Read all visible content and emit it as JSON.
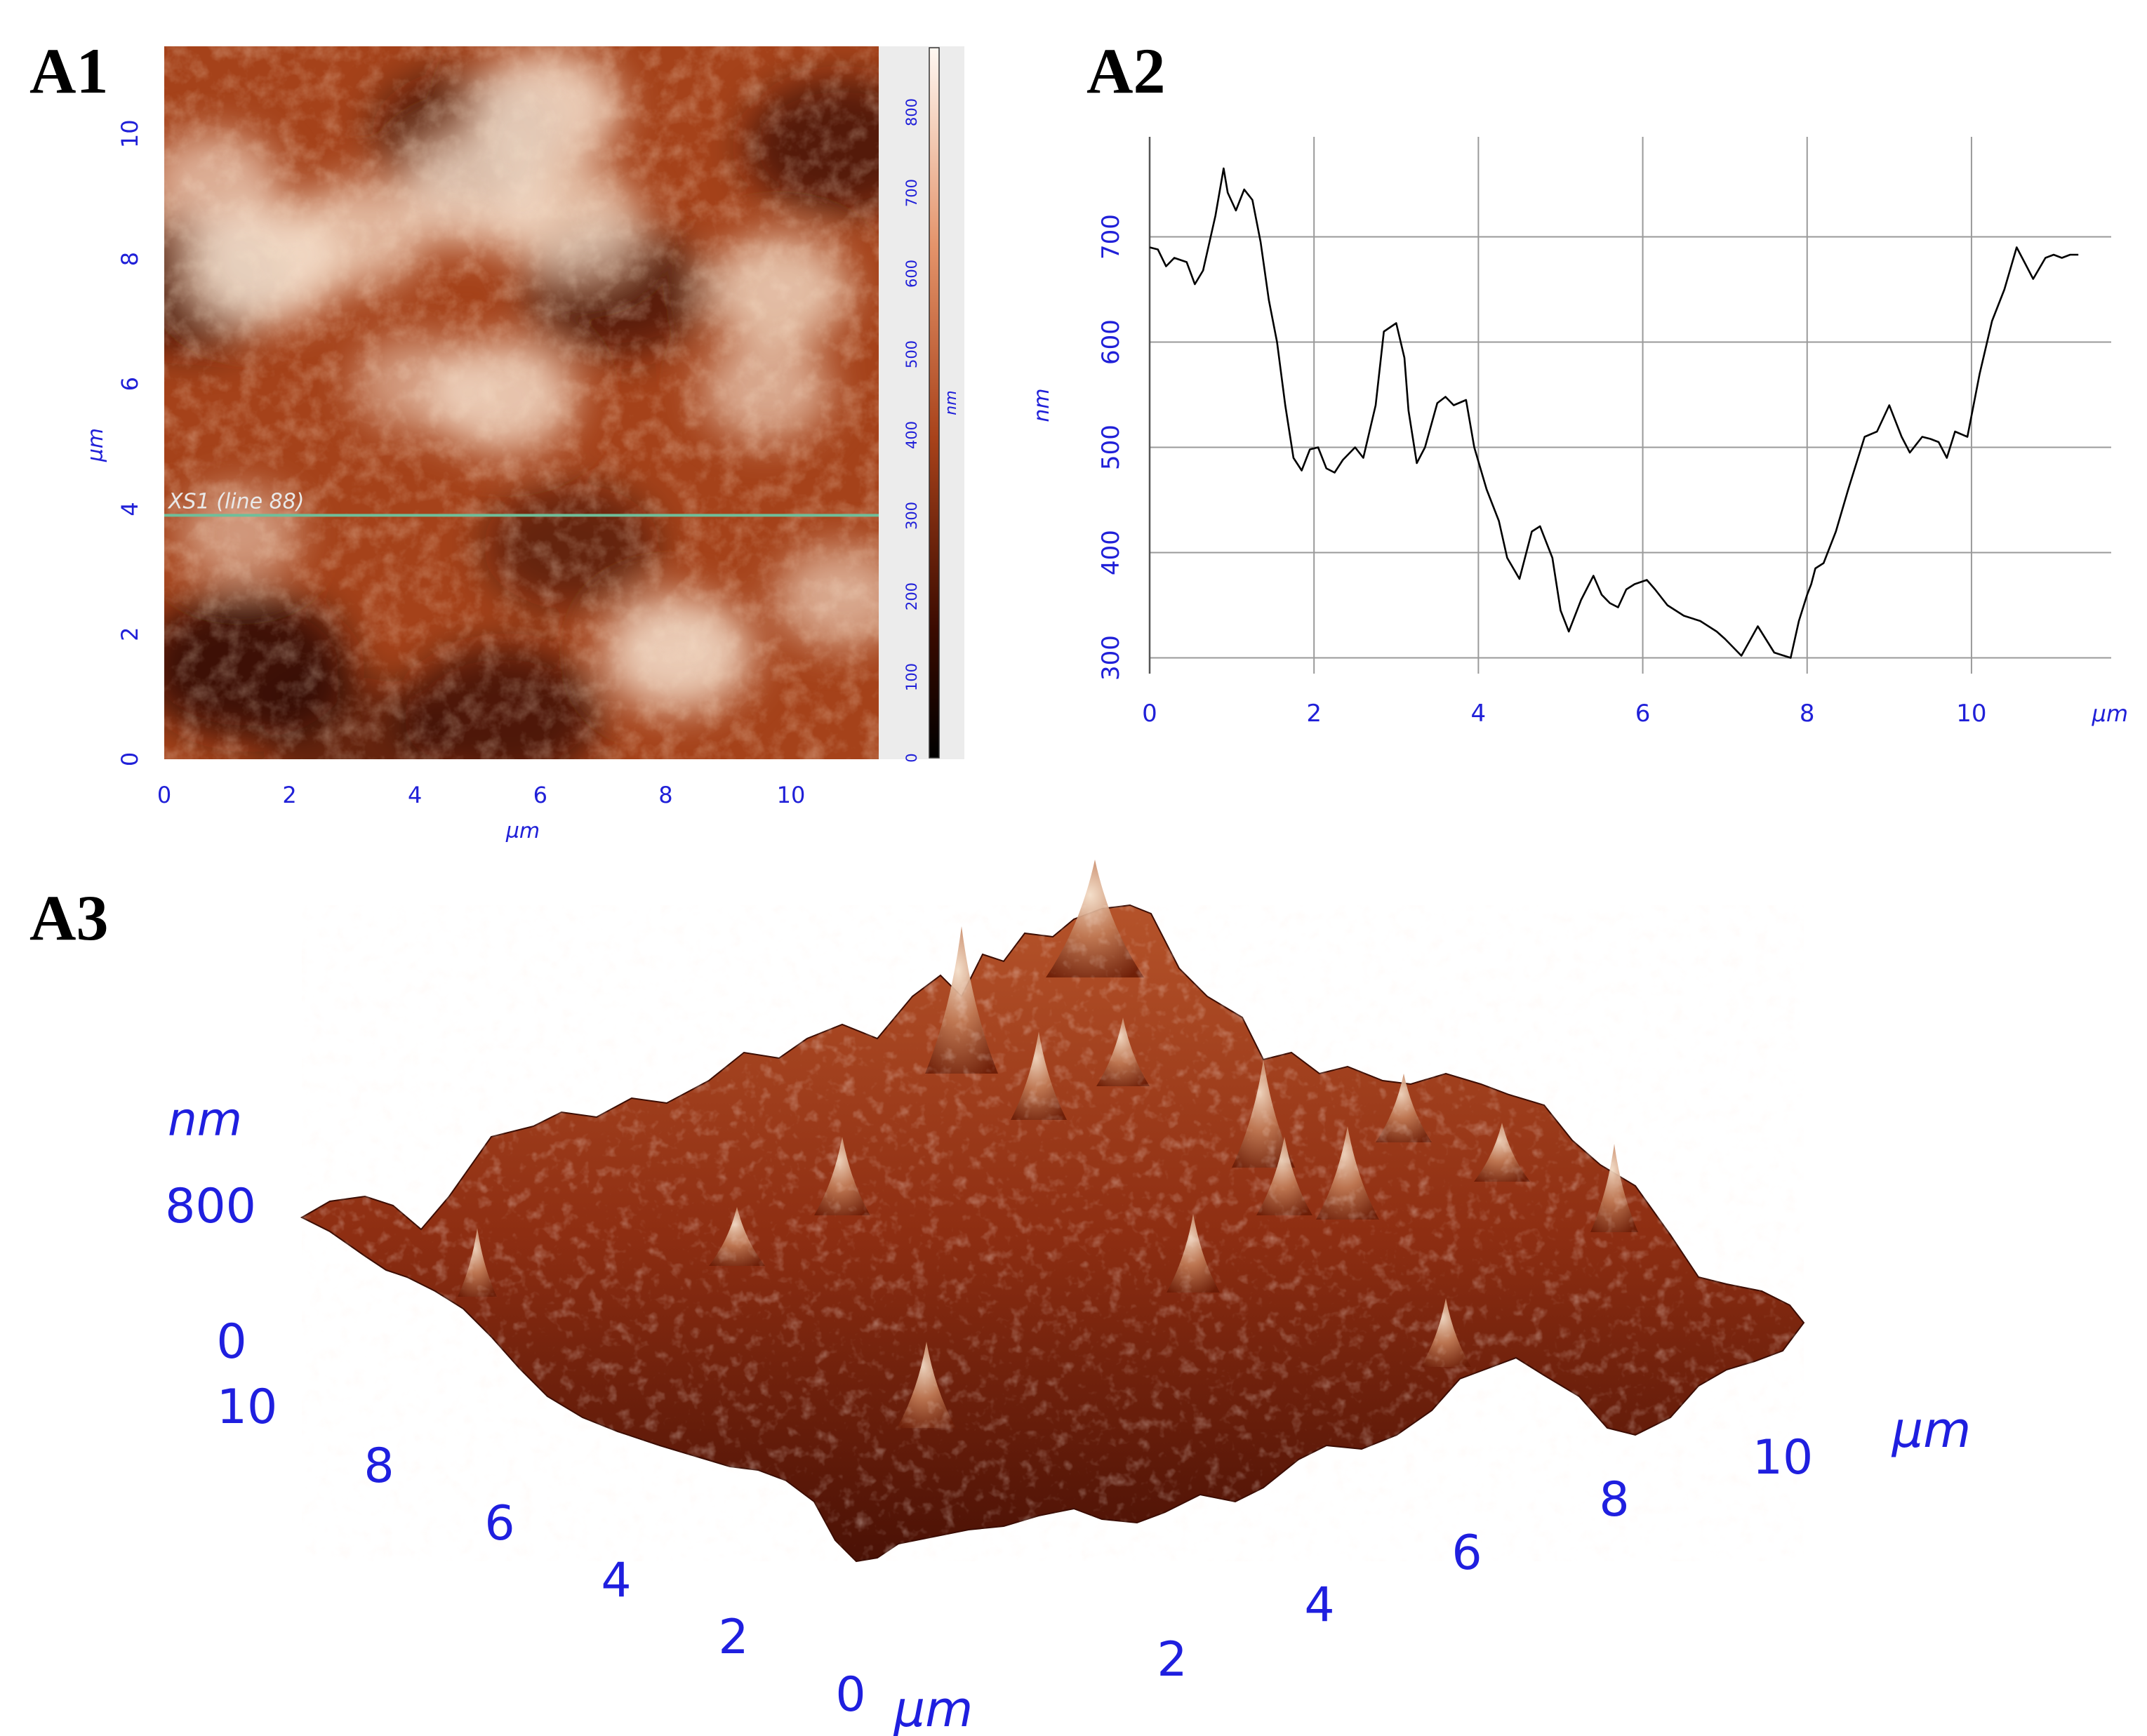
{
  "panels": {
    "a1": "A1",
    "a2": "A2",
    "a3": "A3"
  },
  "colors": {
    "axis_text": "#2020d8",
    "profile_line": "#000000",
    "grid": "#9a9a9a",
    "scan_line": "#6fbf9a",
    "afm_dark": "#1a0500",
    "afm_mid": "#b04a1a",
    "afm_light": "#f6e2cf"
  },
  "chart_data": [
    {
      "type": "heatmap",
      "panel": "A1",
      "xlabel": "µm",
      "ylabel": "µm",
      "x_ticks": [
        "0",
        "2",
        "4",
        "6",
        "8",
        "10"
      ],
      "y_ticks": [
        "0",
        "2",
        "4",
        "6",
        "8",
        "10"
      ],
      "xlim": [
        0,
        11.4
      ],
      "ylim": [
        0,
        11.4
      ],
      "scan_line_label": "XS1 (line 88)",
      "scan_line_y": 3.9,
      "colorbar": {
        "unit": "nm",
        "ticks": [
          "0",
          "100",
          "200",
          "300",
          "400",
          "500",
          "600",
          "700",
          "800"
        ],
        "range": [
          0,
          880
        ]
      },
      "bright_features": [
        {
          "x": 1.6,
          "y": 7.9,
          "v": 1.0
        },
        {
          "x": 0.8,
          "y": 9.2,
          "v": 0.75
        },
        {
          "x": 3.1,
          "y": 8.4,
          "v": 0.8
        },
        {
          "x": 5.0,
          "y": 9.1,
          "v": 0.9
        },
        {
          "x": 6.5,
          "y": 8.6,
          "v": 0.85
        },
        {
          "x": 6.1,
          "y": 10.4,
          "v": 0.95
        },
        {
          "x": 5.4,
          "y": 5.8,
          "v": 0.9
        },
        {
          "x": 9.8,
          "y": 7.5,
          "v": 0.85
        },
        {
          "x": 9.6,
          "y": 5.9,
          "v": 0.7
        },
        {
          "x": 8.2,
          "y": 1.7,
          "v": 0.95
        },
        {
          "x": 4.0,
          "y": 6.0,
          "v": 0.6
        },
        {
          "x": 10.8,
          "y": 2.6,
          "v": 0.7
        },
        {
          "x": 1.2,
          "y": 3.6,
          "v": 0.6
        }
      ],
      "dark_features": [
        {
          "x": 1.3,
          "y": 1.5,
          "v": 1.0
        },
        {
          "x": 0.4,
          "y": 7.6,
          "v": 0.8
        },
        {
          "x": 5.4,
          "y": 0.7,
          "v": 0.85
        },
        {
          "x": 7.2,
          "y": 7.5,
          "v": 0.75
        },
        {
          "x": 10.8,
          "y": 9.8,
          "v": 0.8
        },
        {
          "x": 4.8,
          "y": 10.0,
          "v": 0.7
        },
        {
          "x": 6.5,
          "y": 3.4,
          "v": 0.6
        },
        {
          "x": 3.0,
          "y": 0.3,
          "v": 0.6
        }
      ]
    },
    {
      "type": "line",
      "panel": "A2",
      "xlabel": "µm",
      "ylabel": "nm",
      "x_ticks": [
        0,
        2,
        4,
        6,
        8,
        10
      ],
      "y_ticks": [
        300,
        400,
        500,
        600,
        700
      ],
      "xlim": [
        0,
        11.7
      ],
      "ylim": [
        285,
        795
      ],
      "grid": true,
      "series": [
        {
          "x": [
            0,
            0.1,
            0.2,
            0.3,
            0.45,
            0.55,
            0.65,
            0.8,
            0.9,
            0.95,
            1.05,
            1.15,
            1.25,
            1.35,
            1.45,
            1.55,
            1.65,
            1.75,
            1.85,
            1.95,
            2.05,
            2.15,
            2.25,
            2.35,
            2.5,
            2.6,
            2.75,
            2.85,
            3.0,
            3.1,
            3.15,
            3.25,
            3.35,
            3.5,
            3.6,
            3.7,
            3.85,
            3.95,
            4.1,
            4.25,
            4.35,
            4.5,
            4.65,
            4.75,
            4.9,
            5.0,
            5.1,
            5.25,
            5.4,
            5.5,
            5.6,
            5.7,
            5.8,
            5.9,
            6.05,
            6.15,
            6.3,
            6.5,
            6.7,
            6.9,
            7.0,
            7.2,
            7.4,
            7.6,
            7.8,
            7.9,
            8.0,
            8.05,
            8.1,
            8.2,
            8.35,
            8.5,
            8.7,
            8.85,
            9.0,
            9.15,
            9.25,
            9.4,
            9.5,
            9.6,
            9.7,
            9.8,
            9.95,
            10.1,
            10.25,
            10.4,
            10.55,
            10.65,
            10.75,
            10.9,
            11.0,
            11.1,
            11.2,
            11.3
          ],
          "y": [
            690,
            688,
            672,
            680,
            676,
            655,
            668,
            720,
            765,
            742,
            725,
            745,
            735,
            695,
            640,
            600,
            540,
            490,
            478,
            498,
            500,
            480,
            476,
            488,
            500,
            490,
            540,
            610,
            618,
            585,
            535,
            485,
            500,
            542,
            548,
            540,
            545,
            500,
            460,
            430,
            395,
            375,
            420,
            425,
            395,
            345,
            325,
            355,
            378,
            360,
            352,
            348,
            365,
            370,
            374,
            365,
            350,
            340,
            335,
            325,
            318,
            302,
            330,
            305,
            300,
            335,
            360,
            370,
            385,
            390,
            420,
            460,
            510,
            515,
            540,
            510,
            495,
            510,
            508,
            505,
            490,
            515,
            510,
            570,
            620,
            650,
            690,
            675,
            660,
            680,
            683,
            680,
            683,
            683
          ]
        }
      ]
    },
    {
      "type": "surface",
      "panel": "A3",
      "z_label": "nm",
      "z_ticks": [
        "800",
        "0"
      ],
      "left_axis_ticks": [
        "10",
        "8",
        "6",
        "4",
        "2",
        "0"
      ],
      "right_axis_ticks": [
        "2",
        "4",
        "6",
        "8",
        "10"
      ],
      "left_axis_label": "µm",
      "right_axis_label": "µm"
    }
  ]
}
